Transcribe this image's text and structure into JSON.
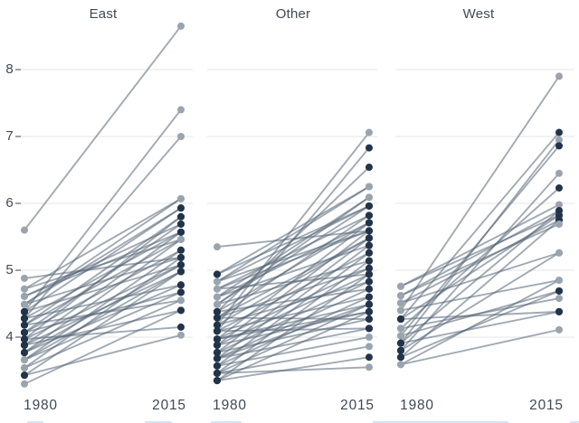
{
  "chart_data": {
    "type": "line",
    "variant": "slopegraph",
    "grid": true,
    "x_categories": [
      "1980",
      "2015"
    ],
    "yticks": [
      8,
      7,
      6,
      5,
      4
    ],
    "ytick_labels": [
      "8",
      "7",
      "6",
      "5",
      "4"
    ],
    "ylim": [
      2.9,
      9.0
    ],
    "colors": {
      "line": "#546475",
      "dot_dark": "#22344a",
      "dot_light": "#99a4ae",
      "gridline": "#e5e6e7",
      "tick": "#6e7a86",
      "text": "#3e4a56"
    },
    "panels": [
      {
        "title": "East",
        "x_labels": [
          "1980",
          "2015"
        ],
        "series": [
          [
            5.6,
            8.65,
            "l",
            "l"
          ],
          [
            4.38,
            7.4,
            "d",
            "l"
          ],
          [
            4.28,
            7.0,
            "d",
            "l"
          ],
          [
            4.72,
            6.07,
            "l",
            "l"
          ],
          [
            4.49,
            6.07,
            "l",
            "l"
          ],
          [
            4.49,
            5.93,
            "l",
            "d"
          ],
          [
            4.38,
            5.93,
            "d",
            "d"
          ],
          [
            4.18,
            5.8,
            "d",
            "d"
          ],
          [
            3.97,
            5.8,
            "d",
            "d"
          ],
          [
            4.61,
            5.69,
            "l",
            "d"
          ],
          [
            4.07,
            5.69,
            "d",
            "d"
          ],
          [
            4.61,
            5.57,
            "l",
            "d"
          ],
          [
            3.88,
            5.57,
            "d",
            "d"
          ],
          [
            4.28,
            5.57,
            "d",
            "d"
          ],
          [
            3.77,
            5.46,
            "d",
            "l"
          ],
          [
            4.18,
            5.46,
            "d",
            "l"
          ],
          [
            4.72,
            5.46,
            "l",
            "l"
          ],
          [
            3.66,
            5.3,
            "l",
            "d"
          ],
          [
            4.07,
            5.3,
            "d",
            "d"
          ],
          [
            4.88,
            5.19,
            "l",
            "d"
          ],
          [
            4.49,
            5.19,
            "l",
            "d"
          ],
          [
            3.54,
            5.19,
            "l",
            "d"
          ],
          [
            3.97,
            5.08,
            "d",
            "d"
          ],
          [
            4.38,
            5.08,
            "d",
            "d"
          ],
          [
            3.77,
            5.08,
            "d",
            "d"
          ],
          [
            3.88,
            4.98,
            "d",
            "d"
          ],
          [
            3.43,
            4.98,
            "d",
            "d"
          ],
          [
            3.66,
            4.98,
            "l",
            "d"
          ],
          [
            3.77,
            4.78,
            "d",
            "d"
          ],
          [
            4.28,
            4.78,
            "d",
            "d"
          ],
          [
            3.66,
            4.67,
            "l",
            "d"
          ],
          [
            4.07,
            4.67,
            "d",
            "d"
          ],
          [
            3.54,
            4.55,
            "l",
            "l"
          ],
          [
            4.18,
            4.55,
            "d",
            "l"
          ],
          [
            3.3,
            4.4,
            "l",
            "d"
          ],
          [
            3.88,
            4.4,
            "d",
            "d"
          ],
          [
            3.97,
            4.15,
            "d",
            "d"
          ],
          [
            3.43,
            4.03,
            "d",
            "l"
          ]
        ]
      },
      {
        "title": "Other",
        "x_labels": [
          "1980",
          "2015"
        ],
        "series": [
          [
            5.35,
            5.59,
            "l",
            "d"
          ],
          [
            4.18,
            7.06,
            "d",
            "l"
          ],
          [
            4.09,
            6.83,
            "d",
            "d"
          ],
          [
            4.38,
            6.54,
            "d",
            "d"
          ],
          [
            4.83,
            6.25,
            "l",
            "l"
          ],
          [
            4.94,
            6.25,
            "d",
            "l"
          ],
          [
            4.6,
            6.09,
            "l",
            "l"
          ],
          [
            4.49,
            6.09,
            "l",
            "l"
          ],
          [
            4.94,
            5.96,
            "d",
            "d"
          ],
          [
            4.49,
            5.96,
            "l",
            "d"
          ],
          [
            4.83,
            5.96,
            "l",
            "d"
          ],
          [
            4.72,
            5.82,
            "l",
            "d"
          ],
          [
            4.29,
            5.82,
            "d",
            "d"
          ],
          [
            3.97,
            5.71,
            "d",
            "d"
          ],
          [
            4.38,
            5.71,
            "d",
            "d"
          ],
          [
            4.6,
            5.71,
            "l",
            "d"
          ],
          [
            4.83,
            5.59,
            "l",
            "d"
          ],
          [
            3.88,
            5.59,
            "d",
            "d"
          ],
          [
            4.72,
            5.59,
            "l",
            "d"
          ],
          [
            4.18,
            5.48,
            "d",
            "d"
          ],
          [
            3.77,
            5.48,
            "d",
            "d"
          ],
          [
            4.29,
            5.48,
            "d",
            "d"
          ],
          [
            4.6,
            5.37,
            "l",
            "d"
          ],
          [
            3.68,
            5.37,
            "d",
            "d"
          ],
          [
            4.09,
            5.26,
            "d",
            "d"
          ],
          [
            3.57,
            5.26,
            "d",
            "d"
          ],
          [
            4.49,
            5.14,
            "l",
            "d"
          ],
          [
            3.46,
            5.14,
            "d",
            "d"
          ],
          [
            3.97,
            5.03,
            "d",
            "d"
          ],
          [
            4.29,
            5.03,
            "d",
            "d"
          ],
          [
            3.88,
            4.94,
            "d",
            "d"
          ],
          [
            3.35,
            4.94,
            "d",
            "d"
          ],
          [
            4.72,
            4.94,
            "l",
            "d"
          ],
          [
            3.77,
            4.83,
            "d",
            "d"
          ],
          [
            4.18,
            4.83,
            "d",
            "d"
          ],
          [
            3.68,
            4.72,
            "d",
            "d"
          ],
          [
            4.38,
            4.72,
            "d",
            "d"
          ],
          [
            3.57,
            4.6,
            "d",
            "d"
          ],
          [
            4.09,
            4.6,
            "d",
            "d"
          ],
          [
            3.46,
            4.49,
            "d",
            "d"
          ],
          [
            3.97,
            4.49,
            "d",
            "d"
          ],
          [
            3.68,
            4.49,
            "d",
            "d"
          ],
          [
            3.35,
            4.38,
            "d",
            "d"
          ],
          [
            3.88,
            4.38,
            "d",
            "d"
          ],
          [
            3.97,
            4.38,
            "d",
            "d"
          ],
          [
            4.29,
            4.27,
            "d",
            "d"
          ],
          [
            3.77,
            4.27,
            "d",
            "d"
          ],
          [
            3.68,
            4.13,
            "d",
            "d"
          ],
          [
            4.09,
            4.13,
            "d",
            "d"
          ],
          [
            3.57,
            4.0,
            "d",
            "l"
          ],
          [
            3.46,
            3.86,
            "d",
            "l"
          ],
          [
            3.35,
            3.7,
            "d",
            "d"
          ],
          [
            3.46,
            3.55,
            "d",
            "l"
          ]
        ]
      },
      {
        "title": "West",
        "x_labels": [
          "1980",
          "2015"
        ],
        "series": [
          [
            4.4,
            7.9,
            "l",
            "l"
          ],
          [
            4.27,
            7.06,
            "d",
            "d"
          ],
          [
            3.91,
            6.95,
            "d",
            "l"
          ],
          [
            4.02,
            6.86,
            "l",
            "d"
          ],
          [
            3.8,
            6.45,
            "d",
            "l"
          ],
          [
            4.13,
            6.23,
            "l",
            "d"
          ],
          [
            4.76,
            5.98,
            "l",
            "l"
          ],
          [
            3.91,
            5.89,
            "d",
            "d"
          ],
          [
            4.62,
            5.89,
            "l",
            "d"
          ],
          [
            4.27,
            5.82,
            "d",
            "d"
          ],
          [
            4.76,
            5.82,
            "l",
            "d"
          ],
          [
            3.7,
            5.75,
            "d",
            "d"
          ],
          [
            4.51,
            5.75,
            "l",
            "d"
          ],
          [
            4.62,
            5.69,
            "l",
            "l"
          ],
          [
            4.51,
            5.26,
            "l",
            "l"
          ],
          [
            3.8,
            5.26,
            "d",
            "l"
          ],
          [
            4.4,
            4.85,
            "l",
            "l"
          ],
          [
            3.59,
            4.85,
            "l",
            "l"
          ],
          [
            4.02,
            4.69,
            "l",
            "d"
          ],
          [
            3.7,
            4.69,
            "d",
            "d"
          ],
          [
            4.13,
            4.58,
            "l",
            "l"
          ],
          [
            3.91,
            4.38,
            "d",
            "d"
          ],
          [
            4.27,
            4.38,
            "d",
            "d"
          ],
          [
            3.59,
            4.11,
            "l",
            "l"
          ]
        ]
      }
    ]
  }
}
